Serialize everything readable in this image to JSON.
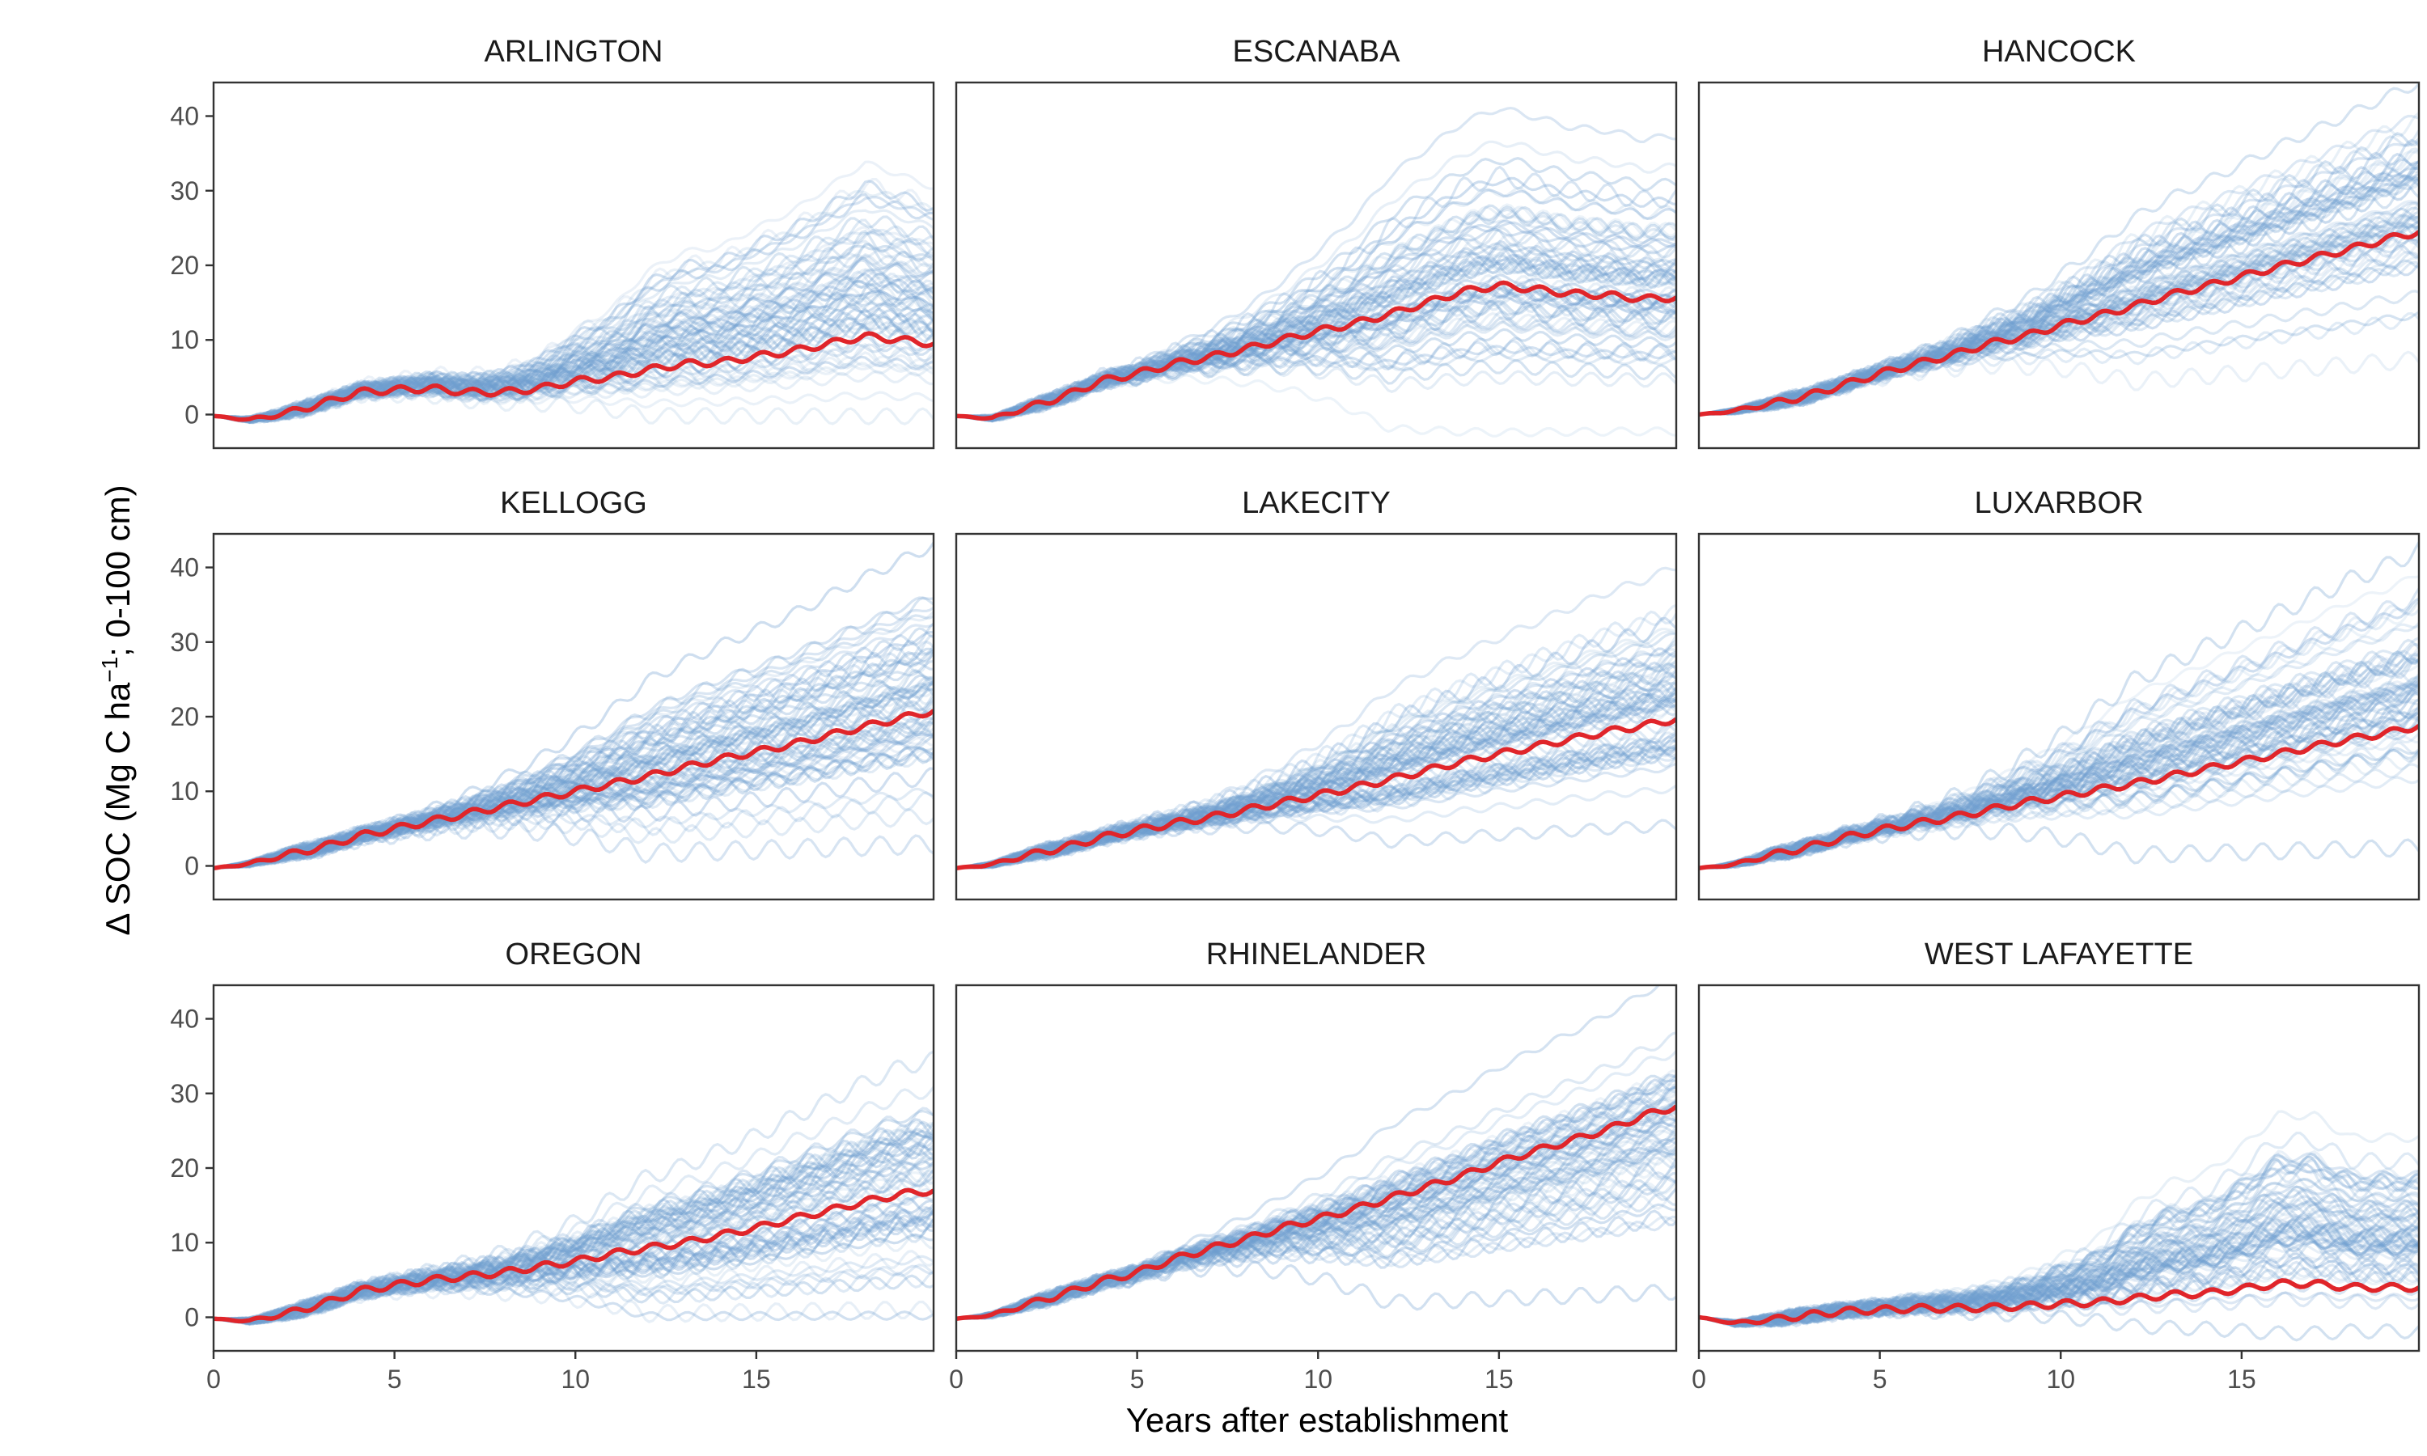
{
  "colors": {
    "ensemble": "#6f9fd0",
    "mean": "#e0252a",
    "panel_border": "#333333",
    "tick_text": "#4d4d4d"
  },
  "chart_data": {
    "type": "line",
    "layout": "facet-grid-3x3",
    "title": "",
    "xlabel": "Years after establishment",
    "ylabel_parts": {
      "main": "Δ SOC (Mg C  ha",
      "superscript": "−1",
      "rest": "; 0-100 cm)"
    },
    "xlim": [
      0,
      19.9
    ],
    "ylim": [
      -4.5,
      44.5
    ],
    "x_ticks": [
      0,
      5,
      10,
      15
    ],
    "x_tick_labels": [
      "0",
      "5",
      "10",
      "15"
    ],
    "y_ticks": [
      0,
      10,
      20,
      30,
      40
    ],
    "y_tick_labels": [
      "0",
      "10",
      "20",
      "30",
      "40"
    ],
    "grid": false,
    "ensemble_runs_per_site": 70,
    "series_description": "light blue lines: individual simulation runs; red line: mean",
    "facets": [
      {
        "site": "ARLINGTON",
        "mean_final": 9.5,
        "env_low": 0,
        "env_high": 31,
        "mean_trace": [
          [
            0,
            -0.2
          ],
          [
            1,
            -0.7
          ],
          [
            2,
            0.2
          ],
          [
            3,
            1.5
          ],
          [
            4,
            3.0
          ],
          [
            5,
            3.3
          ],
          [
            6,
            3.5
          ],
          [
            7,
            3.0
          ],
          [
            8,
            3.0
          ],
          [
            9,
            3.5
          ],
          [
            10,
            4.5
          ],
          [
            11,
            5.0
          ],
          [
            12,
            6.0
          ],
          [
            13,
            6.8
          ],
          [
            14,
            7.0
          ],
          [
            15,
            7.8
          ],
          [
            16,
            8.5
          ],
          [
            17,
            9.5
          ],
          [
            18,
            10.5
          ],
          [
            19,
            10.0
          ],
          [
            19.9,
            9.5
          ]
        ]
      },
      {
        "site": "ESCANABA",
        "mean_final": 15.5,
        "env_low": -2,
        "env_high": 37,
        "mean_trace": [
          [
            0,
            -0.2
          ],
          [
            1,
            -0.5
          ],
          [
            2,
            1.0
          ],
          [
            3,
            2.5
          ],
          [
            4,
            4.5
          ],
          [
            5,
            5.5
          ],
          [
            6,
            6.8
          ],
          [
            7,
            7.7
          ],
          [
            8,
            8.8
          ],
          [
            9,
            10.0
          ],
          [
            10,
            11.2
          ],
          [
            11,
            12.2
          ],
          [
            12,
            13.5
          ],
          [
            13,
            15.0
          ],
          [
            14,
            16.5
          ],
          [
            15,
            17.3
          ],
          [
            16,
            16.8
          ],
          [
            17,
            16.2
          ],
          [
            18,
            16.0
          ],
          [
            19,
            15.5
          ],
          [
            19.9,
            15.7
          ]
        ]
      },
      {
        "site": "HANCOCK",
        "mean_final": 24.5,
        "env_low": 7,
        "env_high": 44,
        "mean_trace": [
          [
            0,
            0
          ],
          [
            1,
            0.5
          ],
          [
            2,
            1.5
          ],
          [
            3,
            2.5
          ],
          [
            4,
            4.0
          ],
          [
            5,
            5.5
          ],
          [
            6,
            6.8
          ],
          [
            7,
            8.0
          ],
          [
            8,
            9.5
          ],
          [
            9,
            10.5
          ],
          [
            10,
            12.0
          ],
          [
            11,
            13.2
          ],
          [
            12,
            14.5
          ],
          [
            13,
            16.0
          ],
          [
            14,
            17.2
          ],
          [
            15,
            18.5
          ],
          [
            16,
            19.8
          ],
          [
            17,
            21.0
          ],
          [
            18,
            22.2
          ],
          [
            19,
            23.5
          ],
          [
            19.9,
            24.5
          ]
        ]
      },
      {
        "site": "KELLOGG",
        "mean_final": 20.5,
        "env_low": 3,
        "env_high": 43,
        "mean_trace": [
          [
            0,
            -0.3
          ],
          [
            1,
            0.3
          ],
          [
            2,
            1.5
          ],
          [
            3,
            2.5
          ],
          [
            4,
            4.0
          ],
          [
            5,
            5.0
          ],
          [
            6,
            6.0
          ],
          [
            7,
            7.0
          ],
          [
            8,
            8.0
          ],
          [
            9,
            9.0
          ],
          [
            10,
            10.0
          ],
          [
            11,
            11.0
          ],
          [
            12,
            12.0
          ],
          [
            13,
            13.2
          ],
          [
            14,
            14.3
          ],
          [
            15,
            15.3
          ],
          [
            16,
            16.3
          ],
          [
            17,
            17.5
          ],
          [
            18,
            18.7
          ],
          [
            19,
            19.8
          ],
          [
            19.9,
            20.8
          ]
        ]
      },
      {
        "site": "LAKECITY",
        "mean_final": 19.5,
        "env_low": 5,
        "env_high": 40,
        "mean_trace": [
          [
            0,
            -0.3
          ],
          [
            1,
            0.2
          ],
          [
            2,
            1.5
          ],
          [
            3,
            2.5
          ],
          [
            4,
            3.8
          ],
          [
            5,
            4.8
          ],
          [
            6,
            5.7
          ],
          [
            7,
            6.5
          ],
          [
            8,
            7.5
          ],
          [
            9,
            8.5
          ],
          [
            10,
            9.5
          ],
          [
            11,
            10.5
          ],
          [
            12,
            11.6
          ],
          [
            13,
            12.8
          ],
          [
            14,
            14.0
          ],
          [
            15,
            15.0
          ],
          [
            16,
            16.0
          ],
          [
            17,
            17.0
          ],
          [
            18,
            18.0
          ],
          [
            19,
            18.8
          ],
          [
            19.9,
            19.7
          ]
        ]
      },
      {
        "site": "LUXARBOR",
        "mean_final": 18.5,
        "env_low": 2,
        "env_high": 43,
        "mean_trace": [
          [
            0,
            -0.3
          ],
          [
            1,
            0.2
          ],
          [
            2,
            1.5
          ],
          [
            3,
            2.5
          ],
          [
            4,
            3.8
          ],
          [
            5,
            4.8
          ],
          [
            6,
            5.7
          ],
          [
            7,
            6.5
          ],
          [
            8,
            7.5
          ],
          [
            9,
            8.5
          ],
          [
            10,
            9.3
          ],
          [
            11,
            10.2
          ],
          [
            12,
            11.0
          ],
          [
            13,
            12.0
          ],
          [
            14,
            13.0
          ],
          [
            15,
            14.0
          ],
          [
            16,
            15.0
          ],
          [
            17,
            16.0
          ],
          [
            18,
            17.0
          ],
          [
            19,
            17.8
          ],
          [
            19.9,
            18.8
          ]
        ]
      },
      {
        "site": "OREGON",
        "mean_final": 16.5,
        "env_low": 0,
        "env_high": 35,
        "mean_trace": [
          [
            0,
            -0.2
          ],
          [
            1,
            -0.5
          ],
          [
            2,
            0.5
          ],
          [
            3,
            1.8
          ],
          [
            4,
            3.5
          ],
          [
            5,
            4.3
          ],
          [
            6,
            5.0
          ],
          [
            7,
            5.5
          ],
          [
            8,
            6.0
          ],
          [
            9,
            6.8
          ],
          [
            10,
            7.5
          ],
          [
            11,
            8.5
          ],
          [
            12,
            9.3
          ],
          [
            13,
            10.0
          ],
          [
            14,
            11.0
          ],
          [
            15,
            12.0
          ],
          [
            16,
            13.2
          ],
          [
            17,
            14.3
          ],
          [
            18,
            15.5
          ],
          [
            19,
            16.5
          ],
          [
            19.9,
            17.0
          ]
        ]
      },
      {
        "site": "RHINELANDER",
        "mean_final": 28,
        "env_low": 3,
        "env_high": 45,
        "mean_trace": [
          [
            0,
            -0.2
          ],
          [
            1,
            0.3
          ],
          [
            2,
            1.8
          ],
          [
            3,
            3.2
          ],
          [
            4,
            4.8
          ],
          [
            5,
            6.0
          ],
          [
            6,
            7.8
          ],
          [
            7,
            9.2
          ],
          [
            8,
            10.5
          ],
          [
            9,
            12.0
          ],
          [
            10,
            13.2
          ],
          [
            11,
            14.5
          ],
          [
            12,
            16.0
          ],
          [
            13,
            17.5
          ],
          [
            14,
            19.0
          ],
          [
            15,
            20.8
          ],
          [
            16,
            22.3
          ],
          [
            17,
            23.7
          ],
          [
            18,
            25.2
          ],
          [
            19,
            27.0
          ],
          [
            19.9,
            28.3
          ]
        ]
      },
      {
        "site": "WEST LAFAYETTE",
        "mean_final": 4,
        "env_low": -2,
        "env_high": 24,
        "mean_trace": [
          [
            0,
            0
          ],
          [
            1,
            -0.8
          ],
          [
            2,
            -0.3
          ],
          [
            3,
            0.3
          ],
          [
            4,
            0.8
          ],
          [
            5,
            1.0
          ],
          [
            6,
            1.2
          ],
          [
            7,
            1.2
          ],
          [
            8,
            1.3
          ],
          [
            9,
            1.5
          ],
          [
            10,
            1.8
          ],
          [
            11,
            2.0
          ],
          [
            12,
            2.5
          ],
          [
            13,
            3.0
          ],
          [
            14,
            3.2
          ],
          [
            15,
            3.8
          ],
          [
            16,
            4.5
          ],
          [
            17,
            4.5
          ],
          [
            18,
            4.0
          ],
          [
            19,
            4.0
          ],
          [
            19.9,
            4.0
          ]
        ]
      }
    ]
  }
}
